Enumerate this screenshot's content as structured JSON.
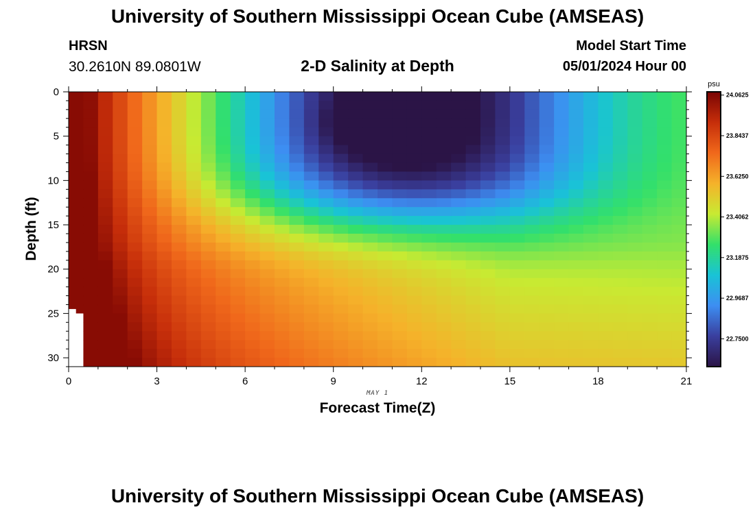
{
  "header": {
    "title": "University of Southern Mississippi Ocean Cube (AMSEAS)",
    "station": "HRSN",
    "coords": "30.2610N  89.0801W",
    "subtitle": "2-D Salinity at Depth",
    "model_start_label": "Model Start Time",
    "model_start_value": "05/01/2024 Hour 00"
  },
  "footer": {
    "title": "University of Southern Mississippi Ocean Cube (AMSEAS)"
  },
  "chart_data": {
    "type": "heatmap",
    "title": "2-D Salinity at Depth",
    "xlabel": "Forecast Time(Z)",
    "ylabel": "Depth (ft)",
    "x_sublabel": "MAY 1",
    "xlim": [
      0,
      21
    ],
    "ylim": [
      31,
      0
    ],
    "xticks": [
      0,
      3,
      6,
      9,
      12,
      15,
      18,
      21
    ],
    "yticks": [
      0,
      5,
      10,
      15,
      20,
      25,
      30
    ],
    "x_step_hours": 0.5,
    "y_step_ft": 1,
    "colorbar": {
      "unit": "psu",
      "min": 22.6,
      "max": 24.08,
      "ticks": [
        "24.0625",
        "23.8437",
        "23.6250",
        "23.4062",
        "23.1875",
        "22.9687",
        "22.7500"
      ],
      "tick_values": [
        24.0625,
        23.84375,
        23.625,
        23.40625,
        23.1875,
        22.96875,
        22.75
      ],
      "stops": [
        "#2b1446",
        "#3a3f9e",
        "#3d8ef2",
        "#19c3d6",
        "#33e06a",
        "#c8ea32",
        "#f5b22a",
        "#f0681b",
        "#c62e0a",
        "#7a0403"
      ]
    },
    "description": "Salinity (psu) by depth and forecast hour; saltiest (~24.05) at hour 0 throughout the column, freshest (~22.63) near 3-4 ft around hours 10-12, no-data gap below ~24.5 ft before hour 0.25",
    "surface_low_center": {
      "hour": 11,
      "depth_ft": 3.5,
      "value": 22.63
    },
    "bottom_value_range": [
      23.65,
      23.95
    ]
  }
}
